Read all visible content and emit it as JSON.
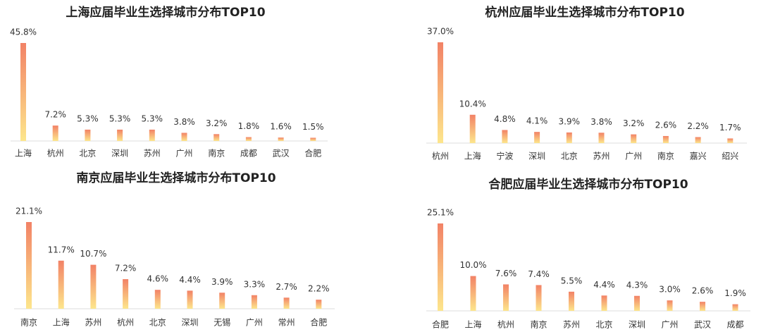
{
  "chart_data": [
    {
      "type": "bar",
      "title": "上海应届毕业生选择城市分布TOP10",
      "categories": [
        "上海",
        "杭州",
        "北京",
        "深圳",
        "苏州",
        "广州",
        "南京",
        "成都",
        "武汉",
        "合肥"
      ],
      "values": [
        45.8,
        7.2,
        5.3,
        5.3,
        5.3,
        3.8,
        3.2,
        1.8,
        1.6,
        1.5
      ],
      "value_labels": [
        "45.8%",
        "7.2%",
        "5.3%",
        "5.3%",
        "5.3%",
        "3.8%",
        "3.2%",
        "1.8%",
        "1.6%",
        "1.5%"
      ],
      "color": [
        "#f28266",
        "#fde68c"
      ]
    },
    {
      "type": "bar",
      "title": "杭州应届毕业生选择城市分布TOP10",
      "categories": [
        "杭州",
        "上海",
        "宁波",
        "深圳",
        "北京",
        "苏州",
        "广州",
        "南京",
        "嘉兴",
        "绍兴"
      ],
      "values": [
        37.0,
        10.4,
        4.8,
        4.1,
        3.9,
        3.8,
        3.2,
        2.6,
        2.2,
        1.7
      ],
      "value_labels": [
        "37.0%",
        "10.4%",
        "4.8%",
        "4.1%",
        "3.9%",
        "3.8%",
        "3.2%",
        "2.6%",
        "2.2%",
        "1.7%"
      ],
      "color": [
        "#f28266",
        "#fde68c"
      ]
    },
    {
      "type": "bar",
      "title": "南京应届毕业生选择城市分布TOP10",
      "categories": [
        "南京",
        "上海",
        "苏州",
        "杭州",
        "北京",
        "深圳",
        "无锡",
        "广州",
        "常州",
        "合肥"
      ],
      "values": [
        21.1,
        11.7,
        10.7,
        7.2,
        4.6,
        4.4,
        3.9,
        3.3,
        2.7,
        2.2
      ],
      "value_labels": [
        "21.1%",
        "11.7%",
        "10.7%",
        "7.2%",
        "4.6%",
        "4.4%",
        "3.9%",
        "3.3%",
        "2.7%",
        "2.2%"
      ],
      "color": [
        "#f28266",
        "#fde68c"
      ]
    },
    {
      "type": "bar",
      "title": "合肥应届毕业生选择城市分布TOP10",
      "categories": [
        "合肥",
        "上海",
        "杭州",
        "南京",
        "苏州",
        "北京",
        "深圳",
        "广州",
        "武汉",
        "成都"
      ],
      "values": [
        25.1,
        10.0,
        7.6,
        7.4,
        5.5,
        4.4,
        4.3,
        3.0,
        2.6,
        1.9
      ],
      "value_labels": [
        "25.1%",
        "10.0%",
        "7.6%",
        "7.4%",
        "5.5%",
        "4.4%",
        "4.3%",
        "3.0%",
        "2.6%",
        "1.9%"
      ],
      "color": [
        "#f28266",
        "#fde68c"
      ]
    }
  ]
}
